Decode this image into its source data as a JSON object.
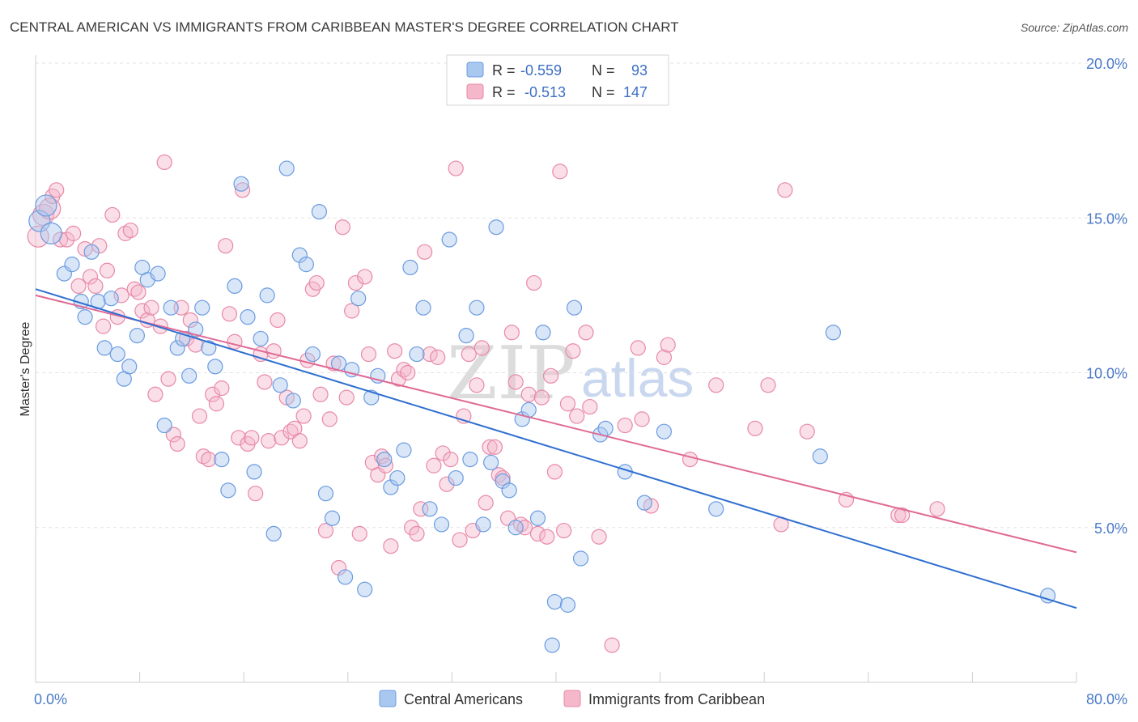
{
  "title": "CENTRAL AMERICAN VS IMMIGRANTS FROM CARIBBEAN MASTER'S DEGREE CORRELATION CHART",
  "source": "Source: ZipAtlas.com",
  "watermark": {
    "zip": "ZIP",
    "atlas": "atlas"
  },
  "colors": {
    "blue_fill": "#a9c8f0",
    "blue_stroke": "#6b9be0",
    "blue_line": "#2f6fd0",
    "pink_fill": "#f5b8cb",
    "pink_stroke": "#e889a7",
    "pink_line": "#e06a95",
    "grid": "#e3e3e3",
    "tick_text": "#4a7ac8"
  },
  "legend": {
    "rows": [
      {
        "r_label": "R =",
        "r_value": "-0.559",
        "n_label": "N =",
        "n_value": "93"
      },
      {
        "r_label": "R =",
        "r_value": "-0.513",
        "n_label": "N =",
        "n_value": "147"
      }
    ]
  },
  "chart_data": {
    "type": "scatter",
    "title": "CENTRAL AMERICAN VS IMMIGRANTS FROM CARIBBEAN MASTER'S DEGREE CORRELATION CHART",
    "xlabel": "",
    "ylabel": "Master's Degree",
    "xlim": [
      0,
      80
    ],
    "ylim": [
      0,
      20
    ],
    "x_tick_labels": [
      "0.0%",
      "80.0%"
    ],
    "y_ticks": [
      5,
      10,
      15,
      20
    ],
    "y_tick_labels": [
      "5.0%",
      "10.0%",
      "15.0%",
      "20.0%"
    ],
    "grid": true,
    "legend_position": "top-center",
    "series": [
      {
        "name": "Central Americans",
        "r": -0.559,
        "n": 93,
        "trend": {
          "x": [
            0,
            80
          ],
          "y": [
            12.7,
            2.4
          ]
        },
        "points": [
          [
            0.3,
            14.9
          ],
          [
            0.8,
            15.4
          ],
          [
            1.2,
            14.5
          ],
          [
            2.2,
            13.2
          ],
          [
            2.8,
            13.5
          ],
          [
            3.5,
            12.3
          ],
          [
            3.8,
            11.8
          ],
          [
            4.3,
            13.9
          ],
          [
            4.8,
            12.3
          ],
          [
            5.3,
            10.8
          ],
          [
            5.8,
            12.4
          ],
          [
            6.3,
            10.6
          ],
          [
            6.8,
            9.8
          ],
          [
            7.2,
            10.2
          ],
          [
            7.8,
            11.2
          ],
          [
            8.2,
            13.4
          ],
          [
            8.6,
            13.0
          ],
          [
            9.4,
            13.2
          ],
          [
            9.9,
            8.3
          ],
          [
            10.4,
            12.1
          ],
          [
            10.9,
            10.8
          ],
          [
            11.3,
            11.1
          ],
          [
            11.8,
            9.9
          ],
          [
            12.3,
            11.4
          ],
          [
            12.8,
            12.1
          ],
          [
            13.3,
            10.8
          ],
          [
            13.8,
            10.2
          ],
          [
            14.3,
            7.2
          ],
          [
            14.8,
            6.2
          ],
          [
            15.3,
            12.8
          ],
          [
            15.8,
            16.1
          ],
          [
            16.3,
            11.8
          ],
          [
            16.8,
            6.8
          ],
          [
            17.3,
            11.1
          ],
          [
            17.8,
            12.5
          ],
          [
            18.3,
            4.8
          ],
          [
            18.8,
            9.6
          ],
          [
            19.3,
            16.6
          ],
          [
            19.8,
            9.1
          ],
          [
            20.3,
            13.8
          ],
          [
            20.8,
            13.5
          ],
          [
            21.3,
            10.6
          ],
          [
            21.8,
            15.2
          ],
          [
            22.3,
            6.1
          ],
          [
            22.8,
            5.3
          ],
          [
            23.3,
            10.3
          ],
          [
            23.8,
            3.4
          ],
          [
            24.3,
            10.1
          ],
          [
            24.8,
            12.4
          ],
          [
            25.3,
            3.0
          ],
          [
            25.8,
            9.2
          ],
          [
            26.3,
            9.9
          ],
          [
            26.8,
            7.2
          ],
          [
            27.3,
            6.3
          ],
          [
            27.8,
            6.6
          ],
          [
            28.3,
            7.5
          ],
          [
            28.8,
            13.4
          ],
          [
            29.3,
            10.6
          ],
          [
            29.8,
            12.1
          ],
          [
            30.3,
            5.6
          ],
          [
            31.2,
            5.1
          ],
          [
            31.8,
            14.3
          ],
          [
            32.3,
            6.6
          ],
          [
            33.1,
            11.2
          ],
          [
            33.4,
            7.2
          ],
          [
            33.9,
            12.1
          ],
          [
            34.4,
            5.1
          ],
          [
            35.0,
            7.1
          ],
          [
            35.4,
            14.7
          ],
          [
            35.9,
            6.5
          ],
          [
            36.4,
            6.2
          ],
          [
            36.9,
            5.0
          ],
          [
            37.4,
            8.5
          ],
          [
            37.9,
            8.8
          ],
          [
            38.6,
            5.3
          ],
          [
            39.0,
            11.3
          ],
          [
            39.7,
            1.2
          ],
          [
            39.9,
            2.6
          ],
          [
            40.9,
            2.5
          ],
          [
            41.4,
            12.1
          ],
          [
            41.9,
            4.0
          ],
          [
            43.4,
            8.0
          ],
          [
            43.8,
            8.2
          ],
          [
            45.3,
            6.8
          ],
          [
            46.8,
            5.8
          ],
          [
            48.3,
            8.1
          ],
          [
            52.3,
            5.6
          ],
          [
            60.3,
            7.3
          ],
          [
            61.3,
            11.3
          ],
          [
            77.8,
            2.8
          ]
        ]
      },
      {
        "name": "Immigrants from Caribbean",
        "r": -0.513,
        "n": 147,
        "trend": {
          "x": [
            0,
            80
          ],
          "y": [
            12.5,
            4.2
          ]
        },
        "points": [
          [
            0.2,
            14.4
          ],
          [
            0.6,
            15.1
          ],
          [
            1.1,
            15.3
          ],
          [
            1.3,
            15.7
          ],
          [
            1.6,
            15.9
          ],
          [
            1.9,
            14.3
          ],
          [
            2.4,
            14.3
          ],
          [
            2.9,
            14.5
          ],
          [
            3.3,
            12.8
          ],
          [
            3.8,
            14.0
          ],
          [
            4.2,
            13.1
          ],
          [
            4.6,
            12.8
          ],
          [
            4.9,
            14.1
          ],
          [
            5.2,
            11.5
          ],
          [
            5.5,
            13.3
          ],
          [
            5.9,
            15.1
          ],
          [
            6.3,
            11.8
          ],
          [
            6.6,
            12.5
          ],
          [
            6.9,
            14.5
          ],
          [
            7.3,
            14.6
          ],
          [
            7.6,
            12.7
          ],
          [
            7.9,
            12.6
          ],
          [
            8.2,
            12.0
          ],
          [
            8.6,
            11.7
          ],
          [
            8.9,
            12.1
          ],
          [
            9.2,
            9.3
          ],
          [
            9.6,
            11.5
          ],
          [
            9.9,
            16.8
          ],
          [
            10.2,
            9.8
          ],
          [
            10.6,
            8.0
          ],
          [
            10.9,
            7.7
          ],
          [
            11.2,
            12.1
          ],
          [
            11.6,
            11.1
          ],
          [
            11.9,
            11.7
          ],
          [
            12.3,
            10.9
          ],
          [
            12.6,
            8.6
          ],
          [
            12.9,
            7.3
          ],
          [
            13.3,
            7.2
          ],
          [
            13.6,
            9.3
          ],
          [
            13.9,
            9.0
          ],
          [
            14.3,
            9.5
          ],
          [
            14.6,
            14.1
          ],
          [
            14.9,
            11.9
          ],
          [
            15.3,
            11.0
          ],
          [
            15.6,
            7.9
          ],
          [
            15.9,
            15.9
          ],
          [
            16.3,
            7.7
          ],
          [
            16.6,
            7.9
          ],
          [
            16.9,
            6.1
          ],
          [
            17.3,
            10.6
          ],
          [
            17.6,
            9.7
          ],
          [
            17.9,
            7.8
          ],
          [
            18.3,
            10.7
          ],
          [
            18.6,
            11.7
          ],
          [
            18.9,
            7.9
          ],
          [
            19.3,
            9.2
          ],
          [
            19.6,
            8.1
          ],
          [
            19.9,
            8.2
          ],
          [
            20.3,
            7.8
          ],
          [
            20.6,
            8.6
          ],
          [
            20.9,
            10.4
          ],
          [
            21.3,
            12.7
          ],
          [
            21.6,
            12.9
          ],
          [
            21.9,
            9.3
          ],
          [
            22.3,
            4.9
          ],
          [
            22.6,
            8.5
          ],
          [
            22.9,
            10.3
          ],
          [
            23.3,
            3.7
          ],
          [
            23.6,
            14.7
          ],
          [
            23.9,
            9.2
          ],
          [
            24.3,
            12.0
          ],
          [
            24.6,
            12.9
          ],
          [
            24.9,
            4.8
          ],
          [
            25.3,
            13.1
          ],
          [
            25.6,
            10.6
          ],
          [
            25.9,
            7.1
          ],
          [
            26.3,
            6.7
          ],
          [
            26.6,
            7.3
          ],
          [
            26.9,
            7.0
          ],
          [
            27.3,
            4.4
          ],
          [
            27.6,
            10.7
          ],
          [
            27.9,
            9.8
          ],
          [
            28.3,
            10.1
          ],
          [
            28.6,
            10.0
          ],
          [
            28.9,
            5.0
          ],
          [
            29.3,
            4.8
          ],
          [
            29.6,
            5.6
          ],
          [
            29.9,
            13.9
          ],
          [
            30.3,
            10.6
          ],
          [
            30.6,
            7.0
          ],
          [
            30.9,
            10.5
          ],
          [
            31.3,
            7.4
          ],
          [
            31.6,
            6.4
          ],
          [
            31.9,
            7.2
          ],
          [
            32.3,
            16.6
          ],
          [
            32.6,
            4.6
          ],
          [
            32.9,
            8.6
          ],
          [
            33.3,
            10.6
          ],
          [
            33.6,
            4.9
          ],
          [
            33.9,
            9.6
          ],
          [
            34.3,
            10.8
          ],
          [
            34.6,
            5.8
          ],
          [
            34.9,
            7.6
          ],
          [
            35.3,
            7.6
          ],
          [
            35.6,
            6.7
          ],
          [
            35.9,
            6.6
          ],
          [
            36.3,
            5.3
          ],
          [
            36.6,
            11.3
          ],
          [
            36.9,
            9.7
          ],
          [
            37.3,
            5.1
          ],
          [
            37.6,
            5.0
          ],
          [
            37.9,
            9.3
          ],
          [
            38.3,
            12.9
          ],
          [
            38.6,
            4.8
          ],
          [
            38.9,
            9.2
          ],
          [
            39.3,
            4.7
          ],
          [
            39.6,
            9.9
          ],
          [
            39.9,
            6.8
          ],
          [
            40.3,
            16.5
          ],
          [
            40.6,
            4.9
          ],
          [
            40.9,
            9.0
          ],
          [
            41.3,
            10.7
          ],
          [
            41.6,
            8.6
          ],
          [
            42.3,
            11.3
          ],
          [
            42.6,
            8.9
          ],
          [
            43.3,
            4.7
          ],
          [
            44.3,
            1.2
          ],
          [
            45.3,
            8.3
          ],
          [
            46.3,
            10.8
          ],
          [
            46.6,
            8.5
          ],
          [
            47.3,
            5.7
          ],
          [
            48.3,
            10.5
          ],
          [
            48.6,
            10.9
          ],
          [
            50.3,
            7.2
          ],
          [
            52.3,
            9.6
          ],
          [
            55.3,
            8.2
          ],
          [
            56.3,
            9.6
          ],
          [
            57.3,
            5.1
          ],
          [
            57.6,
            15.9
          ],
          [
            59.3,
            8.1
          ],
          [
            62.3,
            5.9
          ],
          [
            66.3,
            5.4
          ],
          [
            66.6,
            5.4
          ],
          [
            69.3,
            5.6
          ]
        ]
      }
    ]
  }
}
